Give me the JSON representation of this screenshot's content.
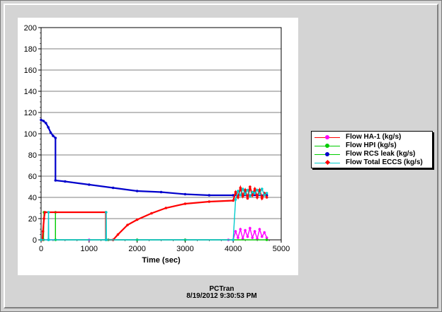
{
  "footer": {
    "app": "PCTran",
    "timestamp": "8/19/2012 9:30:53 PM"
  },
  "legend": {
    "items": [
      {
        "label": "Flow HA-1 (kg/s)",
        "color": "#ff0000",
        "marker": "dot-pink"
      },
      {
        "label": "Flow HPI (kg/s)",
        "color": "#00cc00",
        "marker": "dot-green"
      },
      {
        "label": "Flow RCS leak (kg/s)",
        "color": "#00cc00",
        "marker": "dot-blue"
      },
      {
        "label": "Flow Total ECCS (kg/s)",
        "color": "#00cccc",
        "marker": "diamond-red"
      }
    ]
  },
  "chart_data": {
    "type": "line",
    "title": "",
    "xlabel": "Time (sec)",
    "ylabel": "",
    "xlim": [
      0,
      5000
    ],
    "ylim": [
      0,
      200
    ],
    "x_ticks": [
      0,
      1000,
      2000,
      3000,
      4000,
      5000
    ],
    "y_ticks": [
      0,
      20,
      40,
      60,
      80,
      100,
      120,
      140,
      160,
      180,
      200
    ],
    "grid": "horizontal",
    "legend_position": "right",
    "series": [
      {
        "name": "Flow HA-1 (kg/s)",
        "color": "#ff00ff",
        "points": [
          [
            0,
            0
          ],
          [
            1000,
            0
          ],
          [
            2000,
            0
          ],
          [
            3000,
            0
          ],
          [
            3900,
            0
          ],
          [
            4000,
            0
          ],
          [
            4050,
            8
          ],
          [
            4100,
            2
          ],
          [
            4150,
            10
          ],
          [
            4200,
            1
          ],
          [
            4250,
            9
          ],
          [
            4300,
            3
          ],
          [
            4350,
            11
          ],
          [
            4400,
            2
          ],
          [
            4450,
            8
          ],
          [
            4500,
            1
          ],
          [
            4550,
            10
          ],
          [
            4600,
            3
          ],
          [
            4650,
            7
          ],
          [
            4700,
            2
          ]
        ]
      },
      {
        "name": "Flow HPI (kg/s)",
        "color": "#00cc00",
        "points": [
          [
            0,
            0
          ],
          [
            50,
            0
          ],
          [
            60,
            26
          ],
          [
            300,
            26
          ],
          [
            300,
            0
          ],
          [
            1400,
            0
          ],
          [
            2000,
            0
          ],
          [
            3000,
            0
          ],
          [
            4700,
            0
          ]
        ]
      },
      {
        "name": "Flow RCS leak (kg/s)",
        "color": "#0000cc",
        "points": [
          [
            0,
            113
          ],
          [
            50,
            112
          ],
          [
            100,
            110
          ],
          [
            150,
            106
          ],
          [
            200,
            101
          ],
          [
            250,
            98
          ],
          [
            300,
            96
          ],
          [
            300,
            56
          ],
          [
            500,
            55
          ],
          [
            1000,
            52
          ],
          [
            1500,
            49
          ],
          [
            2000,
            46
          ],
          [
            2500,
            45
          ],
          [
            3000,
            43
          ],
          [
            3500,
            42
          ],
          [
            4000,
            42
          ],
          [
            4500,
            42
          ],
          [
            4700,
            42
          ]
        ]
      },
      {
        "name": "Flow Total ECCS (kg/s)",
        "color": "#ff0000",
        "points": [
          [
            0,
            0
          ],
          [
            30,
            0
          ],
          [
            40,
            8
          ],
          [
            60,
            20
          ],
          [
            80,
            26
          ],
          [
            1350,
            26
          ],
          [
            1350,
            0
          ],
          [
            1500,
            0
          ],
          [
            1600,
            5
          ],
          [
            1800,
            14
          ],
          [
            2000,
            19
          ],
          [
            2300,
            25
          ],
          [
            2600,
            30
          ],
          [
            3000,
            34
          ],
          [
            3500,
            36
          ],
          [
            4000,
            37
          ],
          [
            4050,
            45
          ],
          [
            4100,
            40
          ],
          [
            4150,
            49
          ],
          [
            4200,
            41
          ],
          [
            4250,
            47
          ],
          [
            4300,
            39
          ],
          [
            4350,
            50
          ],
          [
            4400,
            42
          ],
          [
            4450,
            48
          ],
          [
            4500,
            40
          ],
          [
            4550,
            47
          ],
          [
            4600,
            39
          ],
          [
            4650,
            44
          ],
          [
            4700,
            40
          ]
        ]
      },
      {
        "name": "Flow Total ECCS (kg/s) cyan",
        "color": "#00cccc",
        "points": [
          [
            0,
            0
          ],
          [
            150,
            0
          ],
          [
            155,
            26
          ],
          [
            160,
            0
          ],
          [
            1350,
            0
          ],
          [
            1355,
            26
          ],
          [
            1360,
            0
          ],
          [
            4000,
            0
          ],
          [
            4050,
            38
          ],
          [
            4100,
            46
          ],
          [
            4150,
            42
          ],
          [
            4200,
            48
          ],
          [
            4250,
            43
          ],
          [
            4300,
            47
          ],
          [
            4350,
            41
          ],
          [
            4400,
            45
          ],
          [
            4450,
            44
          ],
          [
            4500,
            47
          ],
          [
            4550,
            43
          ],
          [
            4600,
            48
          ],
          [
            4650,
            42
          ],
          [
            4700,
            44
          ]
        ]
      }
    ]
  }
}
